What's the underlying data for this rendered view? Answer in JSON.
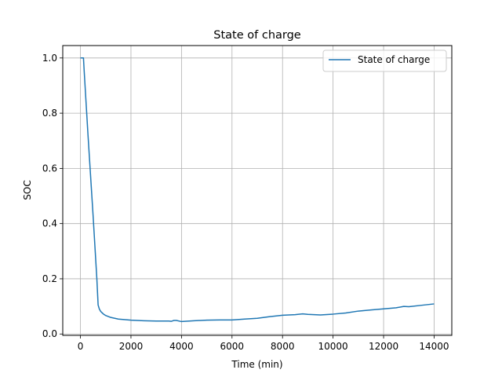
{
  "chart_data": {
    "type": "line",
    "title": "State of charge",
    "xlabel": "Time (min)",
    "ylabel": "SOC",
    "xlim": [
      -700,
      14700
    ],
    "ylim": [
      -0.005,
      1.045
    ],
    "x_ticks": [
      0,
      2000,
      4000,
      6000,
      8000,
      10000,
      12000,
      14000
    ],
    "y_ticks": [
      0.0,
      0.2,
      0.4,
      0.6,
      0.8,
      1.0
    ],
    "x_tick_labels": [
      "0",
      "2000",
      "4000",
      "6000",
      "8000",
      "10000",
      "12000",
      "14000"
    ],
    "y_tick_labels": [
      "0.0",
      "0.2",
      "0.4",
      "0.6",
      "0.8",
      "1.0"
    ],
    "grid": true,
    "legend_position": "top-right",
    "series": [
      {
        "name": "State of charge",
        "color": "#1f77b4",
        "x": [
          0,
          120,
          150,
          300,
          500,
          650,
          700,
          750,
          800,
          900,
          1000,
          1200,
          1500,
          2000,
          2500,
          3000,
          3500,
          3600,
          3700,
          3800,
          4000,
          4500,
          5000,
          5500,
          6000,
          6500,
          7000,
          7500,
          8000,
          8500,
          8800,
          9000,
          9500,
          10000,
          10500,
          11000,
          11500,
          12000,
          12500,
          12800,
          13000,
          13500,
          14000
        ],
        "y": [
          1.0,
          1.0,
          0.95,
          0.72,
          0.43,
          0.2,
          0.105,
          0.09,
          0.082,
          0.073,
          0.067,
          0.06,
          0.054,
          0.05,
          0.048,
          0.047,
          0.047,
          0.046,
          0.049,
          0.049,
          0.045,
          0.048,
          0.05,
          0.051,
          0.051,
          0.054,
          0.057,
          0.063,
          0.068,
          0.07,
          0.073,
          0.071,
          0.069,
          0.072,
          0.076,
          0.083,
          0.087,
          0.091,
          0.095,
          0.1,
          0.099,
          0.104,
          0.109
        ]
      }
    ]
  }
}
